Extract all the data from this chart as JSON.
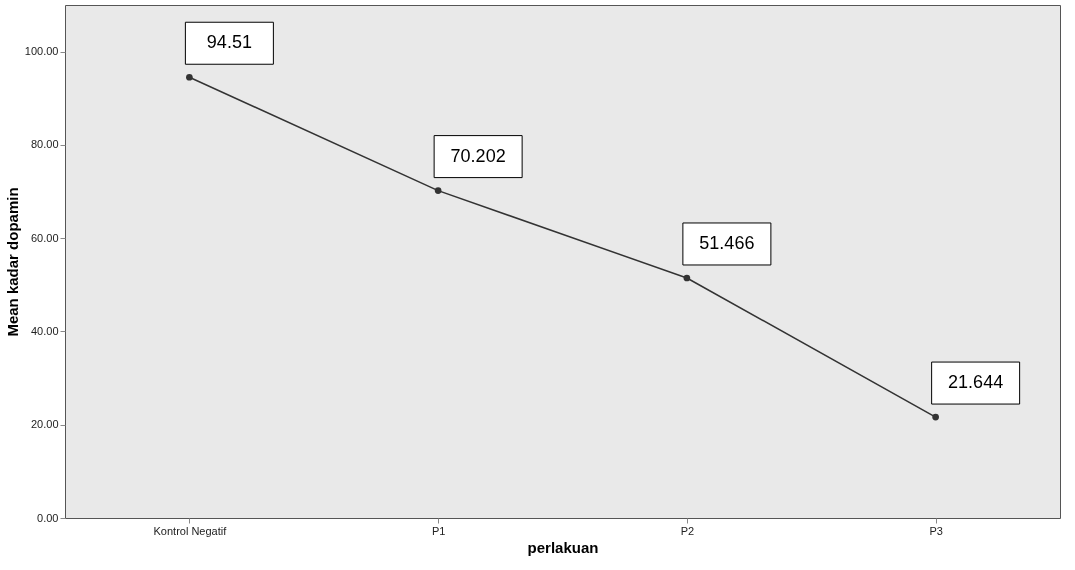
{
  "chart_data": {
    "type": "line",
    "xlabel": "perlakuan",
    "ylabel": "Mean kadar dopamin",
    "categories": [
      "Kontrol Negatif",
      "P1",
      "P2",
      "P3"
    ],
    "series": [
      {
        "color": "#333333",
        "values": [
          94.51,
          70.202,
          51.466,
          21.644
        ]
      }
    ],
    "ylim": [
      0,
      110
    ],
    "yticks": [
      {
        "value": 0,
        "label": "0.00"
      },
      {
        "value": 20,
        "label": "20.00"
      },
      {
        "value": 40,
        "label": "40.00"
      },
      {
        "value": 60,
        "label": "60.00"
      },
      {
        "value": 80,
        "label": "80.00"
      },
      {
        "value": 100,
        "label": "100.00"
      }
    ],
    "grid": false,
    "legend": false,
    "marker": "circle",
    "line_style": "solid",
    "data_labels": true
  }
}
